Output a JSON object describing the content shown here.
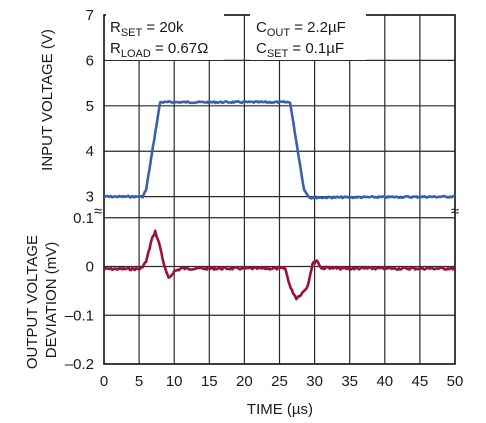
{
  "chart_data": {
    "type": "line",
    "xlabel": "TIME (µs)",
    "x_ticks": [
      "0",
      "5",
      "10",
      "15",
      "20",
      "25",
      "30",
      "35",
      "40",
      "45",
      "50"
    ],
    "xlim": [
      0,
      50
    ],
    "top_panel": {
      "ylabel": "INPUT VOLTAGE (V)",
      "ylim": [
        2.75,
        7
      ],
      "y_ticks": [
        "3",
        "4",
        "5",
        "6",
        "7"
      ],
      "series": [
        {
          "color": "#3b5fae",
          "x": [
            0,
            5.5,
            6.0,
            8.0,
            26.5,
            28.5,
            29.3,
            50
          ],
          "y": [
            3.0,
            3.0,
            3.15,
            5.08,
            5.08,
            3.15,
            2.98,
            3.0
          ]
        }
      ]
    },
    "bottom_panel": {
      "ylabel": "OUTPUT VOLTAGE DEVIATION (mV)",
      "ylim": [
        -0.2,
        0.12
      ],
      "y_ticks": [
        "0.1",
        "0",
        "–0.1",
        "–0.2"
      ],
      "series": [
        {
          "color": "#9b1236",
          "x": [
            0,
            5.2,
            6.0,
            6.8,
            7.3,
            8.0,
            8.6,
            9.2,
            10.0,
            11.0,
            25.8,
            26.6,
            27.4,
            28.2,
            29.0,
            29.7,
            30.3,
            31.0,
            32.0,
            33.0,
            50
          ],
          "y": [
            -0.005,
            -0.005,
            0.01,
            0.055,
            0.072,
            0.04,
            0.0,
            -0.025,
            -0.01,
            -0.004,
            -0.004,
            -0.045,
            -0.065,
            -0.055,
            -0.04,
            0.005,
            0.013,
            -0.004,
            -0.002,
            -0.004,
            -0.004
          ]
        }
      ]
    },
    "annotations": {
      "rset": {
        "main": "R",
        "sub": "SET",
        "rest": " = 20k"
      },
      "rload": {
        "main": "R",
        "sub": "LOAD",
        "rest": " = 0.67Ω"
      },
      "cout": {
        "main": "C",
        "sub": "OUT",
        "rest": " = 2.2µF"
      },
      "cset": {
        "main": "C",
        "sub": "SET",
        "rest": " = 0.1µF"
      }
    },
    "axis_break_symbol": "≈",
    "grid": true
  }
}
